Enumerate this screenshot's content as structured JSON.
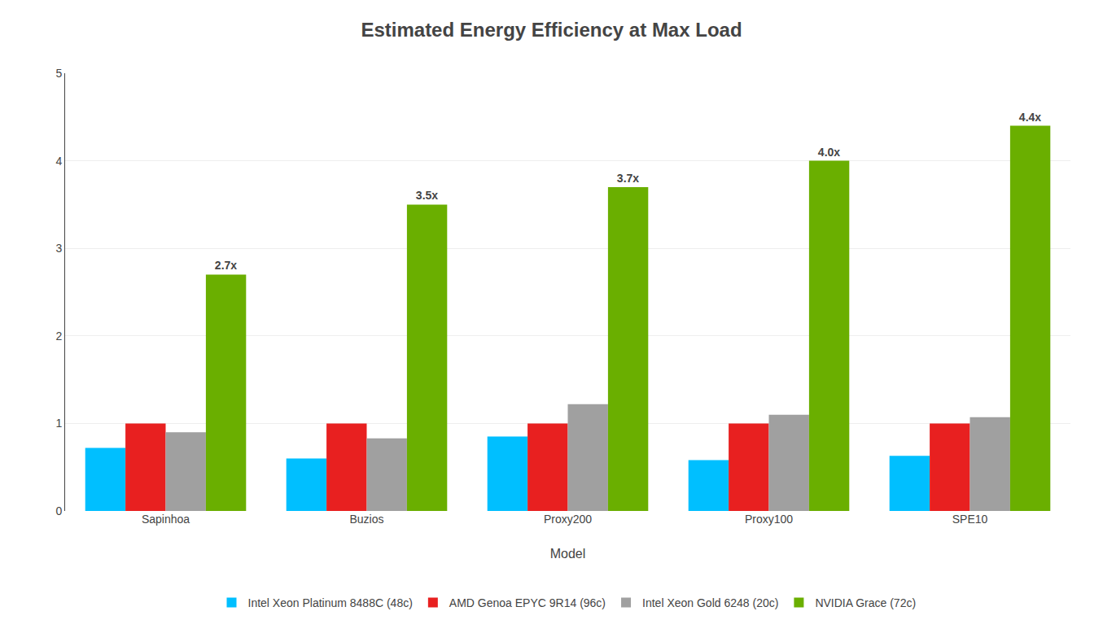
{
  "chart_data": {
    "type": "bar",
    "title": "Estimated Energy Efficiency at Max Load",
    "xlabel": "Model",
    "categories": [
      "Sapinhoa",
      "Buzios",
      "Proxy200",
      "Proxy100",
      "SPE10"
    ],
    "series": [
      {
        "name": "Intel Xeon Platinum 8488C (48c)",
        "color": "#00BFFF",
        "values": [
          0.72,
          0.6,
          0.85,
          0.58,
          0.63
        ]
      },
      {
        "name": "AMD Genoa EPYC 9R14 (96c)",
        "color": "#E82020",
        "values": [
          1.0,
          1.0,
          1.0,
          1.0,
          1.0
        ]
      },
      {
        "name": "Intel Xeon Gold 6248 (20c)",
        "color": "#A0A0A0",
        "values": [
          0.9,
          0.83,
          1.22,
          1.1,
          1.07
        ]
      },
      {
        "name": "NVIDIA Grace (72c)",
        "color": "#6AAF00",
        "values": [
          2.7,
          3.5,
          3.7,
          4.0,
          4.4
        ],
        "data_labels": true,
        "value_labels": [
          "2.7x",
          "3.5x",
          "3.7x",
          "4.0x",
          "4.4x"
        ]
      }
    ],
    "ylim": [
      0,
      5
    ],
    "yticks": [
      0,
      1,
      2,
      3,
      4,
      5
    ],
    "grid": true,
    "legend": "bottom"
  }
}
